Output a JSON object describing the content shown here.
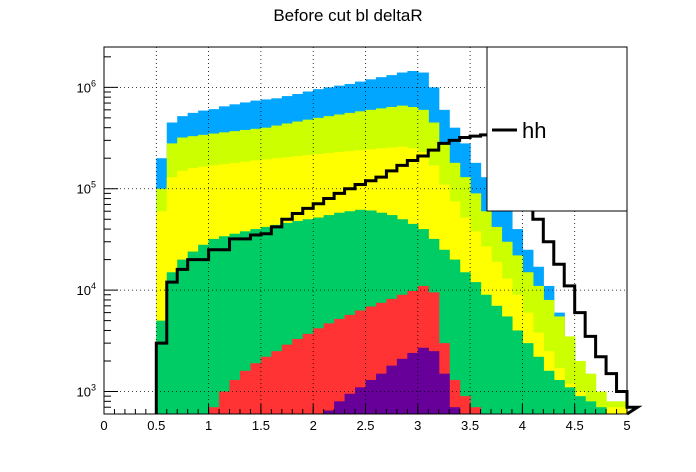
{
  "chart_data": {
    "type": "bar",
    "title": "Before cut bl deltaR",
    "xlabel": "",
    "ylabel": "",
    "xlim": [
      0,
      5
    ],
    "ylim": [
      600,
      2500000
    ],
    "yscale": "log",
    "grid": true,
    "legend_placement": "top-right",
    "x_tick_labels": [
      "0",
      "0.5",
      "1",
      "1.5",
      "2",
      "2.5",
      "3",
      "3.5",
      "4",
      "4.5",
      "5"
    ],
    "y_tick_labels": [
      "10^3",
      "10^4",
      "10^5",
      "10^6"
    ],
    "bin_edges_start": 0.5,
    "bin_width": 0.1,
    "stacked_series": [
      {
        "key": "total",
        "color": "#00a6ff",
        "values": [
          200000,
          450000,
          520000,
          560000,
          590000,
          610000,
          650000,
          680000,
          710000,
          740000,
          760000,
          780000,
          820000,
          860000,
          910000,
          960000,
          1000000,
          1040000,
          1080000,
          1140000,
          1200000,
          1260000,
          1320000,
          1400000,
          1450000,
          1400000,
          1000000,
          600000,
          400000,
          280000,
          180000,
          130000,
          90000,
          60000,
          40000,
          25000,
          17000,
          11000,
          6000,
          3000,
          1300,
          900,
          600,
          500,
          500
        ]
      },
      {
        "key": "layer4",
        "color": "#ccff00",
        "values": [
          100000,
          280000,
          320000,
          330000,
          340000,
          350000,
          360000,
          370000,
          380000,
          390000,
          400000,
          420000,
          440000,
          460000,
          480000,
          500000,
          520000,
          540000,
          560000,
          580000,
          600000,
          620000,
          640000,
          660000,
          640000,
          600000,
          450000,
          280000,
          180000,
          130000,
          90000,
          60000,
          42000,
          30000,
          22000,
          15000,
          11000,
          8000,
          5500,
          3500,
          2000,
          1500,
          1000,
          800,
          800
        ]
      },
      {
        "key": "layer3",
        "color": "#ffff00",
        "values": [
          60000,
          130000,
          150000,
          160000,
          165000,
          170000,
          175000,
          180000,
          185000,
          190000,
          195000,
          200000,
          205000,
          210000,
          215000,
          220000,
          225000,
          230000,
          235000,
          240000,
          245000,
          250000,
          255000,
          260000,
          250000,
          230000,
          170000,
          110000,
          75000,
          52000,
          38000,
          27000,
          19000,
          13000,
          9000,
          6000,
          3800,
          2500,
          1700,
          1200,
          1000,
          800,
          700,
          700,
          700
        ]
      },
      {
        "key": "layer2",
        "color": "#00cc66",
        "values": [
          5000,
          15000,
          20000,
          24000,
          28000,
          32000,
          34000,
          36000,
          38000,
          40000,
          42000,
          44000,
          46000,
          48000,
          50000,
          52000,
          55000,
          58000,
          60000,
          62000,
          61000,
          58000,
          55000,
          50000,
          45000,
          40000,
          32000,
          25000,
          20000,
          15000,
          12000,
          9000,
          7000,
          5500,
          4000,
          3000,
          2200,
          1600,
          1300,
          1100,
          900,
          800,
          700,
          600,
          600
        ]
      },
      {
        "key": "layer1",
        "color": "#ff3333",
        "values": [
          0,
          0,
          0,
          0,
          0,
          700,
          1000,
          1300,
          1600,
          1900,
          2200,
          2500,
          2900,
          3300,
          3700,
          4200,
          4700,
          5200,
          5700,
          6300,
          6900,
          7500,
          8200,
          9000,
          9800,
          11000,
          9500,
          3000,
          1300,
          900,
          700,
          0,
          0,
          0,
          0,
          0,
          0,
          0,
          0,
          0,
          0,
          0,
          0,
          0,
          0
        ]
      },
      {
        "key": "layer0",
        "color": "#660099",
        "values": [
          0,
          0,
          0,
          0,
          0,
          0,
          0,
          0,
          0,
          0,
          0,
          0,
          0,
          0,
          0,
          0,
          650,
          800,
          950,
          1100,
          1300,
          1500,
          1800,
          2100,
          2400,
          2700,
          2500,
          1500,
          700,
          0,
          0,
          0,
          0,
          0,
          0,
          0,
          0,
          0,
          0,
          0,
          0,
          0,
          0,
          0,
          0
        ]
      }
    ],
    "line_series": {
      "name": "hh",
      "color": "#000000",
      "values": [
        3000,
        12000,
        16000,
        20000,
        20000,
        25000,
        25000,
        32000,
        32000,
        35000,
        36000,
        42000,
        50000,
        57000,
        64000,
        71000,
        80000,
        90000,
        100000,
        110000,
        120000,
        130000,
        150000,
        170000,
        190000,
        210000,
        240000,
        280000,
        300000,
        320000,
        330000,
        340000,
        330000,
        190000,
        120000,
        80000,
        50000,
        30000,
        18000,
        11000,
        6000,
        3500,
        2200,
        1500,
        1000,
        700
      ]
    }
  }
}
